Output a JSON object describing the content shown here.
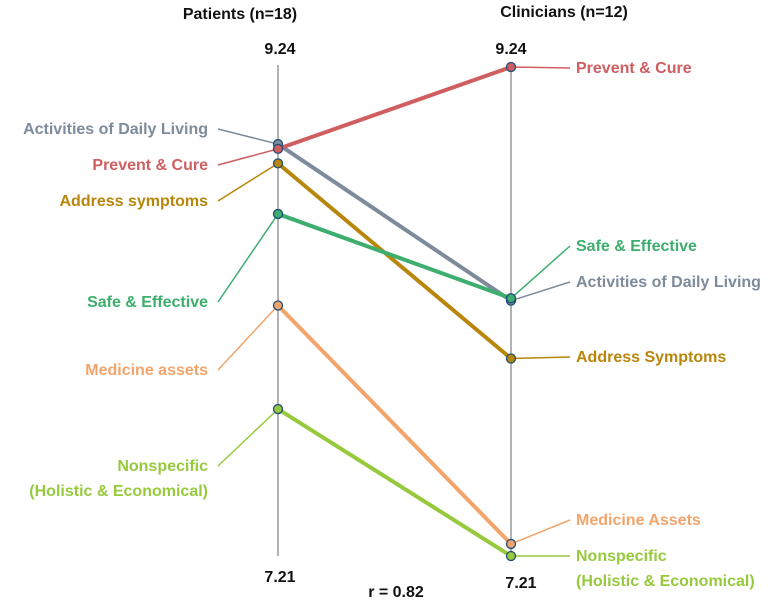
{
  "chart_data": {
    "type": "slope",
    "columns": [
      {
        "name": "Patients (n=18)",
        "top_label": "9.24",
        "bottom_label": "7.21"
      },
      {
        "name": "Clinicians (n=12)",
        "top_label": "9.24",
        "bottom_label": "7.21"
      }
    ],
    "ylim": [
      7.21,
      9.24
    ],
    "footnote": "r = 0.82",
    "series": [
      {
        "left_label": "Activities of Daily Living",
        "right_label": "Activities of Daily Living",
        "color": "#7d8b9b",
        "values": [
          8.92,
          8.27
        ]
      },
      {
        "left_label": "Prevent & Cure",
        "right_label": "Prevent & Cure",
        "color": "#cf5e61",
        "values": [
          8.9,
          9.24
        ]
      },
      {
        "left_label": "Address symptoms",
        "right_label": "Address Symptoms",
        "color": "#b8860b",
        "values": [
          8.84,
          8.03
        ]
      },
      {
        "left_label": "Safe & Effective",
        "right_label": "Safe & Effective",
        "color": "#3dae6e",
        "values": [
          8.63,
          8.28
        ]
      },
      {
        "left_label": "Medicine assets",
        "right_label": "Medicine Assets",
        "color": "#f2a46b",
        "values": [
          8.25,
          7.26
        ]
      },
      {
        "left_label": "Nonspecific\n(Holistic & Economical)",
        "right_label": "Nonspecific\n(Holistic & Economical)",
        "color": "#97c93d",
        "values": [
          7.82,
          7.21
        ]
      }
    ]
  }
}
